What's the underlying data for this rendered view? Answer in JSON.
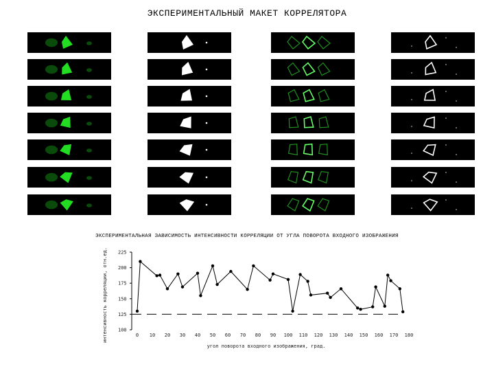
{
  "page": {
    "title": "ЭКСПЕРИМЕНТАЛЬНЫЙ МАКЕТ КОРРЕЛЯТОРА",
    "chart_title": "ЭКСПЕРИМЕНТАЛЬНАЯ ЗАВИСИМОСТЬ ИНТЕНСИВНОСТИ КОРРЕЛЯЦИИ ОТ УГЛА ПОВОРОТА ВХОДНОГО ИЗОБРАЖЕНИЯ"
  },
  "image_grid": {
    "rows": 7,
    "columns": [
      {
        "name": "green-input",
        "style": "green-blob",
        "color": "#22dd22"
      },
      {
        "name": "white-binary",
        "style": "white-blob",
        "color": "#ffffff"
      },
      {
        "name": "green-correlation",
        "style": "green-outline",
        "color": "#33cc33"
      },
      {
        "name": "white-outline",
        "style": "white-outline",
        "color": "#ffffff"
      }
    ]
  },
  "chart_data": {
    "type": "line",
    "title": "ЭКСПЕРИМЕНТАЛЬНАЯ ЗАВИСИМОСТЬ ИНТЕНСИВНОСТИ КОРРЕЛЯЦИИ ОТ УГЛА ПОВОРОТА ВХОДНОГО ИЗОБРАЖЕНИЯ",
    "xlabel": "угол поворота входного изображения, град.",
    "ylabel": "интенсивность корреляции, отн.ед.",
    "xlim": [
      0,
      180
    ],
    "ylim": [
      100,
      225
    ],
    "xticks": [
      "0",
      "10",
      "20",
      "30",
      "40",
      "50",
      "60",
      "70",
      "80",
      "90",
      "100",
      "110",
      "120",
      "130",
      "140",
      "150",
      "160",
      "170",
      "180"
    ],
    "yticks": [
      "100",
      "125",
      "150",
      "175",
      "200",
      "225"
    ],
    "threshold": 125,
    "threshold_style": "dashed",
    "series": [
      {
        "x": [
          0,
          2,
          13,
          15,
          20,
          27,
          30,
          40,
          42,
          50,
          53,
          62,
          73,
          77,
          88,
          90,
          100,
          103,
          108,
          113,
          115,
          126,
          128,
          135,
          146,
          148,
          156,
          158,
          164,
          166,
          168,
          174,
          176
        ],
        "y": [
          130,
          210,
          187,
          188,
          166,
          190,
          169,
          191,
          155,
          203,
          173,
          194,
          165,
          203,
          180,
          190,
          181,
          130,
          189,
          178,
          156,
          159,
          152,
          166,
          135,
          133,
          137,
          169,
          138,
          188,
          179,
          166,
          129
        ]
      }
    ]
  }
}
